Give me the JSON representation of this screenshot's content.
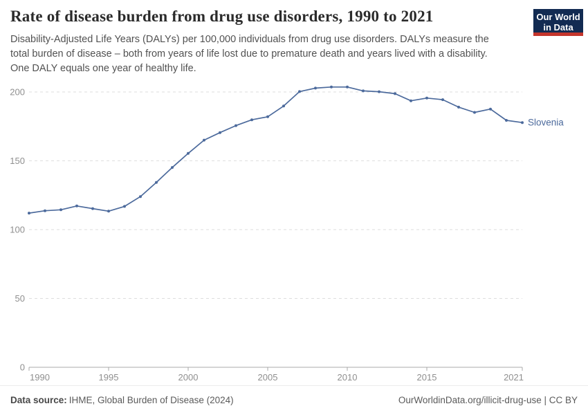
{
  "header": {
    "title": "Rate of disease burden from drug use disorders, 1990 to 2021",
    "subtitle_lines": [
      "Disability-Adjusted Life Years (DALYs) per 100,000 individuals from drug use disorders. DALYs measure the",
      "total burden of disease – both from years of life lost due to premature death and years lived with a disability.",
      "One DALY equals one year of healthy life."
    ],
    "logo": {
      "line1": "Our World",
      "line2": "in Data",
      "bg_color": "#122B52",
      "stripe_color": "#C4352C"
    }
  },
  "chart_data": {
    "type": "line",
    "title": "Rate of disease burden from drug use disorders, 1990 to 2021",
    "xlabel": "",
    "ylabel": "",
    "xlim": [
      1990,
      2021
    ],
    "ylim": [
      0,
      210
    ],
    "xticks": [
      1990,
      1995,
      2000,
      2005,
      2010,
      2015,
      2021
    ],
    "yticks": [
      0,
      50,
      100,
      150,
      200
    ],
    "grid": "horizontal-dashed",
    "legend_position": "end-of-line-label",
    "x": [
      1990,
      1991,
      1992,
      1993,
      1994,
      1995,
      1996,
      1997,
      1998,
      1999,
      2000,
      2001,
      2002,
      2003,
      2004,
      2005,
      2006,
      2007,
      2008,
      2009,
      2010,
      2011,
      2012,
      2013,
      2014,
      2015,
      2016,
      2017,
      2018,
      2019,
      2020,
      2021
    ],
    "series": [
      {
        "name": "Slovenia",
        "color": "#4C6A9C",
        "values": [
          112,
          113.7,
          114.4,
          117.2,
          115.3,
          113.4,
          116.9,
          124,
          134.3,
          145.2,
          155.4,
          165,
          170.5,
          175.6,
          179.8,
          182,
          189.8,
          200.3,
          202.8,
          203.6,
          203.6,
          200.8,
          200.2,
          198.8,
          193.6,
          195.6,
          194.4,
          189,
          185.2,
          187.6,
          179.4,
          177.8
        ]
      }
    ],
    "axis_colors": {
      "grid": "#dedede",
      "axis": "#a8a8a8",
      "tick_label": "#8f8f8f"
    }
  },
  "footer": {
    "datasource_label": "Data source:",
    "datasource_value": "IHME, Global Burden of Disease (2024)",
    "url": "OurWorldinData.org/illicit-drug-use",
    "divider": " | ",
    "license": "CC BY"
  }
}
